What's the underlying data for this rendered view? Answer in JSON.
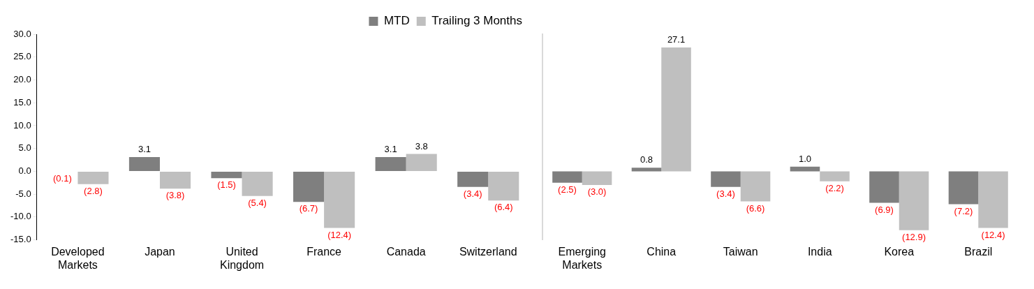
{
  "chart_data": [
    {
      "type": "bar",
      "categories": [
        "Developed Markets",
        "Japan",
        "United Kingdom",
        "France",
        "Canada",
        "Switzerland"
      ],
      "series": [
        {
          "name": "MTD",
          "color": "#7f7f7f",
          "values": [
            -0.1,
            3.1,
            -1.5,
            -6.7,
            3.1,
            -3.4
          ],
          "value_labels": [
            "(0.1)",
            "3.1",
            "(1.5)",
            "(6.7)",
            "3.1",
            "(3.4)"
          ]
        },
        {
          "name": "Trailing 3 Months",
          "color": "#bfbfbf",
          "values": [
            -2.8,
            -3.8,
            -5.4,
            -12.4,
            3.8,
            -6.4
          ],
          "value_labels": [
            "(2.8)",
            "(3.8)",
            "(5.4)",
            "(12.4)",
            "3.8",
            "(6.4)"
          ]
        }
      ],
      "ylim": [
        -15,
        30
      ],
      "yticks": [
        {
          "value": -15,
          "label": "-15.0"
        },
        {
          "value": -10,
          "label": "-10.0"
        },
        {
          "value": -5,
          "label": "-5.0"
        },
        {
          "value": 0,
          "label": "0.0"
        },
        {
          "value": 5,
          "label": "5.0"
        },
        {
          "value": 10,
          "label": "10.0"
        },
        {
          "value": 15,
          "label": "15.0"
        },
        {
          "value": 20,
          "label": "20.0"
        },
        {
          "value": 25,
          "label": "25.0"
        },
        {
          "value": 30,
          "label": "30.0"
        }
      ],
      "grid": false,
      "legend": "top"
    },
    {
      "type": "bar",
      "categories": [
        "Emerging Markets",
        "China",
        "Taiwan",
        "India",
        "Korea",
        "Brazil"
      ],
      "series": [
        {
          "color": "#7f7f7f",
          "values": [
            -2.5,
            0.8,
            -3.4,
            1.0,
            -6.9,
            -7.2
          ],
          "value_labels": [
            "(2.5)",
            "0.8",
            "(3.4)",
            "1.0",
            "(6.9)",
            "(7.2)"
          ]
        },
        {
          "color": "#bfbfbf",
          "values": [
            -3.0,
            27.1,
            -6.6,
            -2.2,
            -12.9,
            -12.4
          ],
          "value_labels": [
            "(3.0)",
            "27.1",
            "(6.6)",
            "(2.2)",
            "(12.9)",
            "(12.4)"
          ]
        }
      ],
      "ylim": [
        -15,
        30
      ],
      "grid": false,
      "tick_labels": "x"
    }
  ]
}
